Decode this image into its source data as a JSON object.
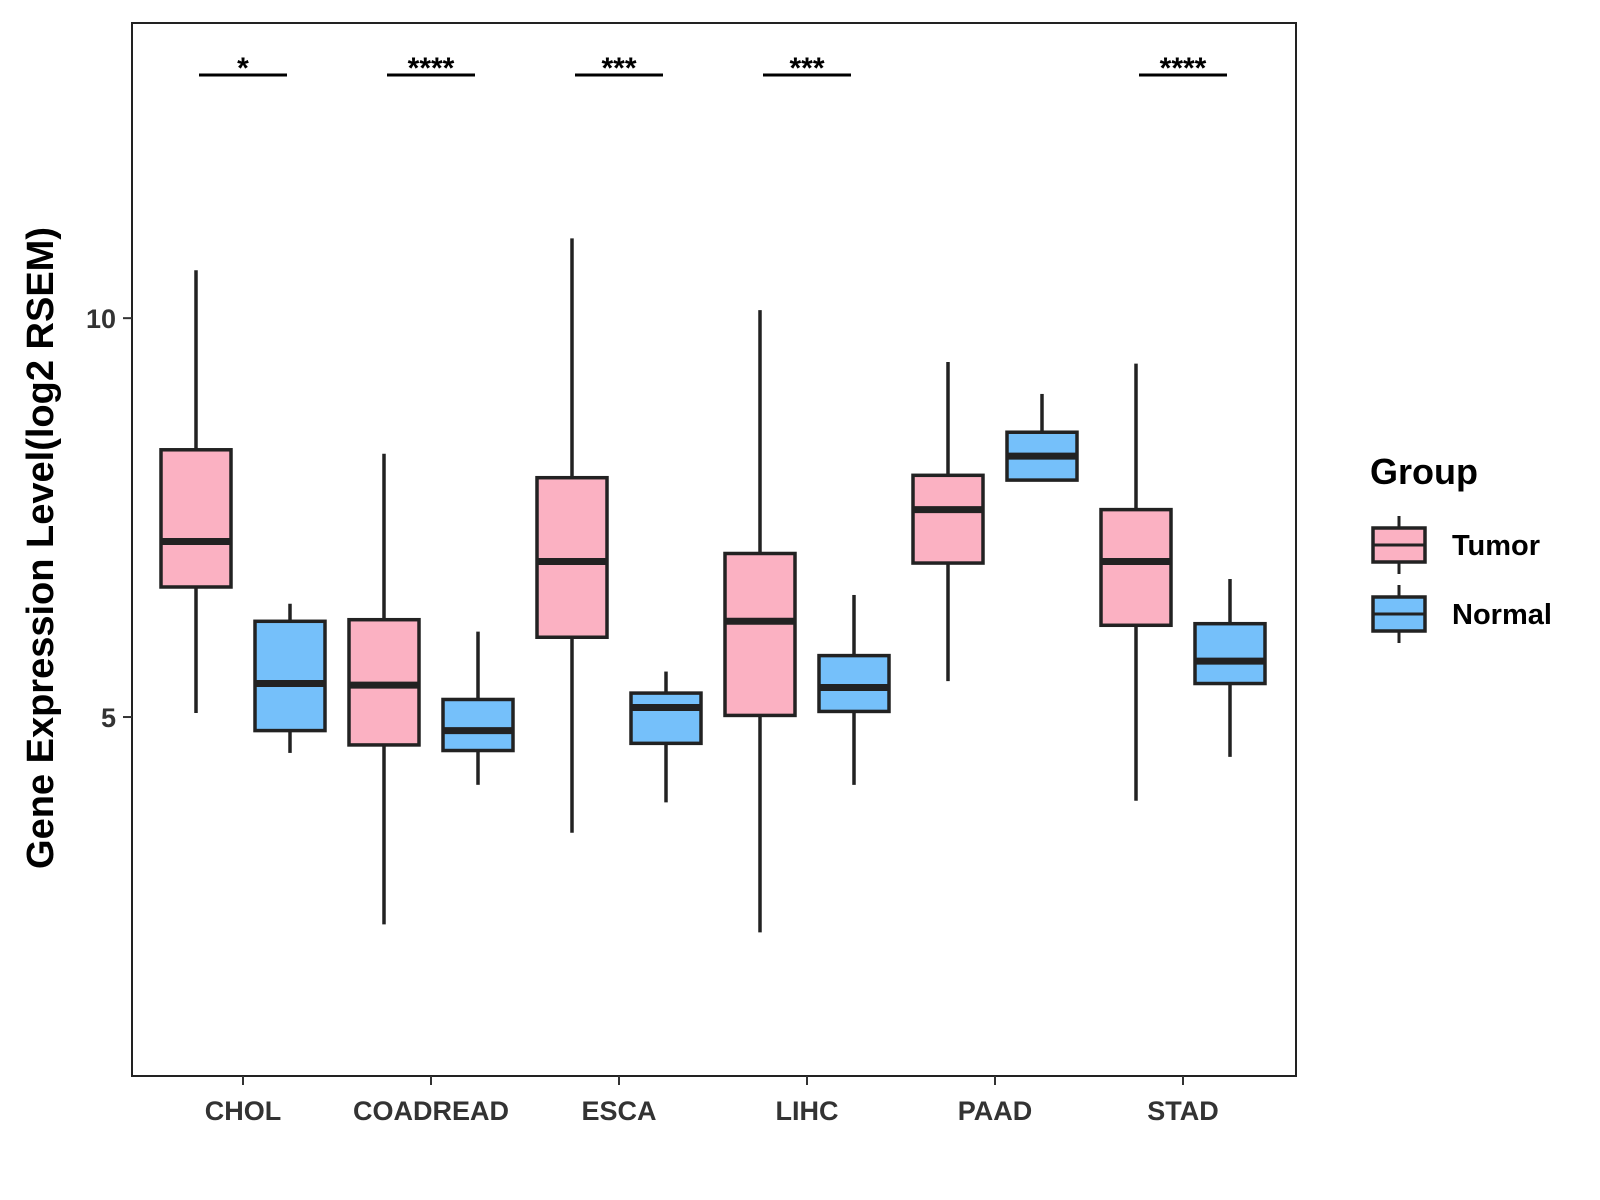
{
  "chart_data": {
    "type": "boxplot",
    "title": "",
    "xlabel": "",
    "ylabel": "Gene Expression Level(log2 RSEM)",
    "ylim": [
      0.5,
      13.7
    ],
    "yticks": [
      5,
      10
    ],
    "ytick_labels": [
      "5",
      "10"
    ],
    "grid": false,
    "legend": {
      "title": "Group",
      "position": "right",
      "entries": [
        "Tumor",
        "Normal"
      ]
    },
    "colors": {
      "Tumor": "#FBB1C2",
      "Normal": "#75C0FA",
      "stroke": "#222222"
    },
    "categories": [
      "CHOL",
      "COADREAD",
      "ESCA",
      "LIHC",
      "PAAD",
      "STAD"
    ],
    "series": [
      {
        "name": "Tumor",
        "boxes": [
          {
            "min": 5.05,
            "q1": 6.63,
            "median": 7.2,
            "q3": 8.35,
            "max": 10.6
          },
          {
            "min": 2.4,
            "q1": 4.65,
            "median": 5.4,
            "q3": 6.22,
            "max": 8.3
          },
          {
            "min": 3.55,
            "q1": 6.0,
            "median": 6.95,
            "q3": 8.0,
            "max": 11.0
          },
          {
            "min": 2.3,
            "q1": 5.02,
            "median": 6.2,
            "q3": 7.05,
            "max": 10.1
          },
          {
            "min": 5.45,
            "q1": 6.93,
            "median": 7.6,
            "q3": 8.03,
            "max": 9.45
          },
          {
            "min": 3.95,
            "q1": 6.15,
            "median": 6.95,
            "q3": 7.6,
            "max": 9.43
          }
        ]
      },
      {
        "name": "Normal",
        "boxes": [
          {
            "min": 4.55,
            "q1": 4.83,
            "median": 5.42,
            "q3": 6.2,
            "max": 6.42
          },
          {
            "min": 4.15,
            "q1": 4.58,
            "median": 4.83,
            "q3": 5.22,
            "max": 6.07
          },
          {
            "min": 3.93,
            "q1": 4.67,
            "median": 5.12,
            "q3": 5.3,
            "max": 5.57
          },
          {
            "min": 4.15,
            "q1": 5.07,
            "median": 5.37,
            "q3": 5.77,
            "max": 6.53
          },
          {
            "min": null,
            "q1": 7.97,
            "median": 8.27,
            "q3": 8.57,
            "max": 9.05
          },
          {
            "min": 4.5,
            "q1": 5.42,
            "median": 5.7,
            "q3": 6.17,
            "max": 6.73
          }
        ]
      }
    ],
    "significance": [
      "*",
      "****",
      "***",
      "***",
      "",
      "****"
    ]
  }
}
